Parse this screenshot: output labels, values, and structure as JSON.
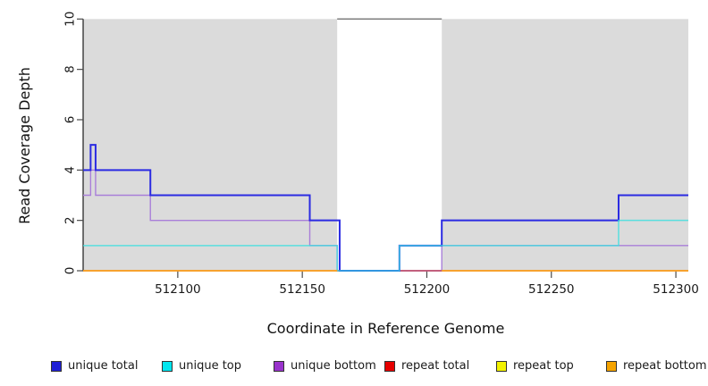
{
  "chart_data": {
    "type": "line",
    "title": "",
    "xlabel": "Coordinate in Reference Genome",
    "ylabel": "Read Coverage Depth",
    "xlim": [
      512062,
      512305
    ],
    "ylim": [
      0,
      10
    ],
    "xticks": [
      512100,
      512150,
      512200,
      512250,
      512300
    ],
    "yticks": [
      0,
      2,
      4,
      6,
      8,
      10
    ],
    "grid": "off",
    "legend_position": "bottom",
    "background": {
      "band_color": "#DBDBDB",
      "bands": [
        [
          512062,
          512164
        ],
        [
          512206,
          512305
        ]
      ],
      "gap_region": [
        512164,
        512206
      ]
    },
    "series": [
      {
        "name": "unique bottom",
        "color": "#A97FD9",
        "width": 1.4,
        "opacity": 1,
        "paths": [
          [
            [
              512062,
              3
            ],
            [
              512065,
              4
            ],
            [
              512067,
              3
            ],
            [
              512089,
              2
            ],
            [
              512153,
              1
            ],
            [
              512164,
              0
            ],
            [
              512206,
              1
            ],
            [
              512305,
              1
            ]
          ]
        ]
      },
      {
        "name": "repeat total",
        "color": "#C64A62",
        "width": 1.5,
        "opacity": 1,
        "paths": [
          [
            [
              512164,
              0
            ],
            [
              512206,
              0
            ]
          ]
        ]
      },
      {
        "name": "unique total",
        "color": "#2B2BE2",
        "width": 2,
        "opacity": 1,
        "paths": [
          [
            [
              512062,
              4
            ],
            [
              512065,
              5
            ],
            [
              512067,
              4
            ],
            [
              512089,
              3
            ],
            [
              512153,
              2
            ],
            [
              512165,
              0
            ],
            [
              512189,
              1
            ],
            [
              512206,
              2
            ],
            [
              512277,
              3
            ],
            [
              512305,
              3
            ]
          ]
        ]
      },
      {
        "name": "unique top",
        "color": "#38DFDF",
        "width": 1.5,
        "opacity": 0.8,
        "paths": [
          [
            [
              512062,
              1
            ],
            [
              512164,
              0
            ],
            [
              512189,
              1
            ],
            [
              512277,
              2
            ],
            [
              512305,
              2
            ]
          ]
        ]
      },
      {
        "name": "repeat top",
        "color": "#F2F200",
        "width": 1.5,
        "opacity": 1,
        "paths": []
      },
      {
        "name": "repeat bottom",
        "color": "#FF9E1B",
        "width": 1.8,
        "opacity": 1,
        "paths": [
          [
            [
              512062,
              0
            ],
            [
              512164,
              0
            ]
          ],
          [
            [
              512206,
              0
            ],
            [
              512305,
              0
            ]
          ]
        ]
      }
    ],
    "legend": [
      {
        "label": "unique total",
        "color": "#1F1FD6"
      },
      {
        "label": "unique top",
        "color": "#00E5EE"
      },
      {
        "label": "unique bottom",
        "color": "#9933CC"
      },
      {
        "label": "repeat total",
        "color": "#E60000"
      },
      {
        "label": "repeat top",
        "color": "#F2F200"
      },
      {
        "label": "repeat bottom",
        "color": "#F5A300"
      }
    ],
    "style": {
      "axis_color": "#2b2b2b",
      "tick_color": "#4a4a4a",
      "tick_label_color": "#1a1a1a",
      "box_top_line_color": "#7e7e7e"
    }
  }
}
